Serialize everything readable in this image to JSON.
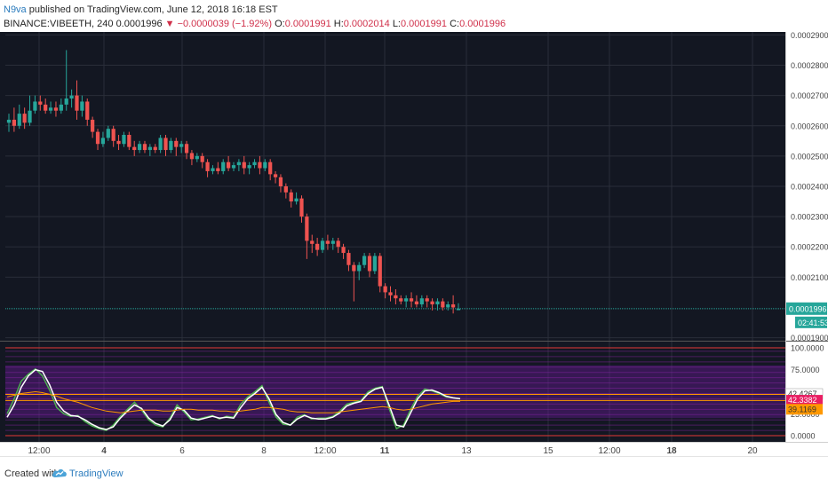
{
  "header": {
    "author": "N9va",
    "published": "published on TradingView.com, June 12, 2018 16:18 EST",
    "symbol": "BINANCE:VIBEETH, 240",
    "last": "0.0001996",
    "change": "▼ −0.0000039 (−1.92%)",
    "o_label": "O:",
    "o_value": "0.0001991",
    "h_label": "H:",
    "h_value": "0.0002014",
    "l_label": "L:",
    "l_value": "0.0001991",
    "c_label": "C:",
    "c_value": "0.0001996"
  },
  "footer": {
    "created_with": "Created with",
    "brand": "TradingView",
    "logo_icon": "tradingview-cloud-icon"
  },
  "colors": {
    "background": "#131722",
    "grid": "#2a2e39",
    "up": "#26a69a",
    "down": "#ef5350",
    "k_line": "#4caf50",
    "d_line": "#ffffff",
    "slow_line": "#ff9800",
    "band_fill": "#6a1b9a",
    "last_price": "#26a69a"
  },
  "chart_data": [
    {
      "type": "candlestick",
      "title": "BINANCE:VIBEETH, 240",
      "x_ticks": [
        "12:00",
        "4",
        "6",
        "8",
        "12:00",
        "11",
        "13",
        "15",
        "12:00",
        "18",
        "20"
      ],
      "y_ticks": [
        "0.0002900",
        "0.0002800",
        "0.0002700",
        "0.0002600",
        "0.0002500",
        "0.0002400",
        "0.0002300",
        "0.0002200",
        "0.0002100",
        "0.0001996",
        "0.0001900"
      ],
      "ylim": [
        0.000189,
        0.000291
      ],
      "last_price": 0.0001996,
      "last_price_label": "0.0001996",
      "countdown": "02:41:53",
      "grid": true,
      "candles": [
        [
          0.000261,
          0.000262,
          0.000258,
          0.000264
        ],
        [
          0.000262,
          0.00026,
          0.000258,
          0.000266
        ],
        [
          0.00026,
          0.000264,
          0.000259,
          0.000267
        ],
        [
          0.000264,
          0.000261,
          0.000259,
          0.000266
        ],
        [
          0.000261,
          0.000265,
          0.00026,
          0.00027
        ],
        [
          0.000265,
          0.000268,
          0.000264,
          0.00027
        ],
        [
          0.000268,
          0.000267,
          0.000265,
          0.00027
        ],
        [
          0.000267,
          0.000265,
          0.000264,
          0.000269
        ],
        [
          0.000265,
          0.000266,
          0.000264,
          0.000268
        ],
        [
          0.000266,
          0.000265,
          0.000263,
          0.000268
        ],
        [
          0.000265,
          0.000267,
          0.000264,
          0.000269
        ],
        [
          0.000267,
          0.000269,
          0.000265,
          0.000285
        ],
        [
          0.000269,
          0.00027,
          0.000266,
          0.000272
        ],
        [
          0.00027,
          0.000265,
          0.000262,
          0.000275
        ],
        [
          0.000265,
          0.000268,
          0.000263,
          0.00027
        ],
        [
          0.000268,
          0.000262,
          0.00026,
          0.000269
        ],
        [
          0.000262,
          0.000258,
          0.000256,
          0.000263
        ],
        [
          0.000258,
          0.000254,
          0.000252,
          0.000259
        ],
        [
          0.000254,
          0.000256,
          0.000253,
          0.000258
        ],
        [
          0.000256,
          0.000259,
          0.000255,
          0.00026
        ],
        [
          0.000259,
          0.000255,
          0.000253,
          0.00026
        ],
        [
          0.000255,
          0.000254,
          0.000252,
          0.000257
        ],
        [
          0.000254,
          0.000257,
          0.000253,
          0.000258
        ],
        [
          0.000257,
          0.000253,
          0.000252,
          0.000258
        ],
        [
          0.000253,
          0.000252,
          0.00025,
          0.000255
        ],
        [
          0.000252,
          0.000254,
          0.000251,
          0.000255
        ],
        [
          0.000254,
          0.000252,
          0.000251,
          0.000255
        ],
        [
          0.000252,
          0.000253,
          0.00025,
          0.000254
        ],
        [
          0.000253,
          0.000252,
          0.000251,
          0.000254
        ],
        [
          0.000252,
          0.000256,
          0.000251,
          0.000257
        ],
        [
          0.000256,
          0.000252,
          0.00025,
          0.000257
        ],
        [
          0.000252,
          0.000255,
          0.000251,
          0.000256
        ],
        [
          0.000255,
          0.000253,
          0.00025,
          0.000256
        ],
        [
          0.000253,
          0.000254,
          0.000251,
          0.000255
        ],
        [
          0.000254,
          0.000251,
          0.000249,
          0.000255
        ],
        [
          0.000251,
          0.000249,
          0.000247,
          0.000252
        ],
        [
          0.000249,
          0.00025,
          0.000248,
          0.000251
        ],
        [
          0.00025,
          0.000248,
          0.000246,
          0.000251
        ],
        [
          0.000248,
          0.000245,
          0.000243,
          0.000249
        ],
        [
          0.000245,
          0.000246,
          0.000244,
          0.000247
        ],
        [
          0.000246,
          0.000245,
          0.000244,
          0.000248
        ],
        [
          0.000245,
          0.000248,
          0.000244,
          0.000249
        ],
        [
          0.000248,
          0.000246,
          0.000245,
          0.00025
        ],
        [
          0.000246,
          0.000247,
          0.000245,
          0.000248
        ],
        [
          0.000247,
          0.000248,
          0.000245,
          0.000249
        ],
        [
          0.000248,
          0.000246,
          0.000244,
          0.00025
        ],
        [
          0.000246,
          0.000247,
          0.000244,
          0.000248
        ],
        [
          0.000247,
          0.000248,
          0.000246,
          0.000249
        ],
        [
          0.000248,
          0.000246,
          0.000244,
          0.00025
        ],
        [
          0.000246,
          0.000248,
          0.000245,
          0.000249
        ],
        [
          0.000248,
          0.000244,
          0.000242,
          0.000249
        ],
        [
          0.000244,
          0.000243,
          0.000241,
          0.000245
        ],
        [
          0.000243,
          0.00024,
          0.000238,
          0.000244
        ],
        [
          0.00024,
          0.000238,
          0.000236,
          0.000241
        ],
        [
          0.000238,
          0.000235,
          0.000233,
          0.000239
        ],
        [
          0.000235,
          0.000236,
          0.000234,
          0.000238
        ],
        [
          0.000236,
          0.00023,
          0.000228,
          0.000237
        ],
        [
          0.00023,
          0.000222,
          0.000216,
          0.000231
        ],
        [
          0.000222,
          0.000221,
          0.000218,
          0.000224
        ],
        [
          0.000221,
          0.000219,
          0.000217,
          0.000223
        ],
        [
          0.000219,
          0.000222,
          0.000218,
          0.000223
        ],
        [
          0.000222,
          0.000221,
          0.000219,
          0.000224
        ],
        [
          0.000221,
          0.000222,
          0.000219,
          0.000223
        ],
        [
          0.000222,
          0.00022,
          0.000218,
          0.000223
        ],
        [
          0.00022,
          0.000218,
          0.000216,
          0.000221
        ],
        [
          0.000218,
          0.000214,
          0.000212,
          0.000219
        ],
        [
          0.000214,
          0.000212,
          0.000202,
          0.000215
        ],
        [
          0.000212,
          0.000214,
          0.000209,
          0.000215
        ],
        [
          0.000214,
          0.000217,
          0.000213,
          0.000218
        ],
        [
          0.000217,
          0.000212,
          0.00021,
          0.000218
        ],
        [
          0.000212,
          0.000217,
          0.000211,
          0.000218
        ],
        [
          0.000217,
          0.000207,
          0.000205,
          0.000218
        ],
        [
          0.000207,
          0.000205,
          0.000203,
          0.000208
        ],
        [
          0.000205,
          0.000204,
          0.000202,
          0.000207
        ],
        [
          0.000204,
          0.000203,
          0.000201,
          0.000206
        ],
        [
          0.000203,
          0.000202,
          0.000201,
          0.000204
        ],
        [
          0.000202,
          0.000203,
          0.0002,
          0.000204
        ],
        [
          0.000203,
          0.000202,
          0.0002,
          0.000205
        ],
        [
          0.000202,
          0.000201,
          0.0002,
          0.000204
        ],
        [
          0.000201,
          0.000203,
          0.0002,
          0.000204
        ],
        [
          0.000203,
          0.000202,
          0.0002,
          0.000204
        ],
        [
          0.000202,
          0.000201,
          0.000199,
          0.000203
        ],
        [
          0.000201,
          0.000202,
          0.000199,
          0.000203
        ],
        [
          0.000202,
          0.0002,
          0.000199,
          0.000203
        ],
        [
          0.0002,
          0.000201,
          0.000199,
          0.000202
        ],
        [
          0.000201,
          0.0002,
          0.000198,
          0.000204
        ],
        [
          0.0001991,
          0.0001996,
          0.0001991,
          0.0002014
        ]
      ]
    },
    {
      "type": "line",
      "y_ticks": [
        "100.0000",
        "75.0000",
        "25.0000",
        "0.0000"
      ],
      "ylim": [
        -4,
        104
      ],
      "bands": [
        [
          20,
          80
        ]
      ],
      "levels": [
        42.43,
        42.34,
        39.12
      ],
      "value_labels": [
        "42.4267",
        "42.3382",
        "39.1169"
      ],
      "series": [
        {
          "color": "#4caf50",
          "values": [
            25,
            42,
            62,
            70,
            76,
            68,
            52,
            32,
            25,
            22,
            23,
            16,
            11,
            8,
            6,
            12,
            22,
            30,
            38,
            29,
            18,
            12,
            10,
            20,
            35,
            27,
            18,
            19,
            21,
            23,
            19,
            22,
            21,
            36,
            44,
            50,
            57,
            38,
            21,
            13,
            12,
            21,
            24,
            19,
            20,
            20,
            22,
            28,
            36,
            38,
            40,
            50,
            54,
            56,
            30,
            8,
            12,
            30,
            45,
            53,
            51,
            48,
            44,
            43,
            42
          ]
        },
        {
          "color": "#ffffff",
          "values": [
            21,
            35,
            55,
            68,
            75,
            73,
            58,
            38,
            28,
            23,
            22,
            18,
            13,
            9,
            7,
            10,
            20,
            28,
            35,
            31,
            20,
            14,
            11,
            18,
            32,
            29,
            20,
            18,
            20,
            22,
            20,
            21,
            20,
            32,
            42,
            48,
            55,
            42,
            24,
            15,
            12,
            19,
            23,
            20,
            19,
            19,
            21,
            26,
            34,
            37,
            39,
            48,
            53,
            55,
            34,
            12,
            10,
            26,
            42,
            51,
            52,
            49,
            45,
            43,
            42
          ]
        },
        {
          "color": "#ff9800",
          "values": [
            44,
            46,
            48,
            49,
            50,
            49,
            47,
            45,
            42,
            40,
            38,
            35,
            32,
            30,
            28,
            27,
            26,
            27,
            28,
            29,
            29,
            29,
            28,
            28,
            29,
            30,
            30,
            29,
            29,
            29,
            28,
            28,
            27,
            28,
            29,
            30,
            32,
            32,
            31,
            30,
            28,
            27,
            27,
            26,
            26,
            26,
            26,
            27,
            28,
            29,
            30,
            31,
            32,
            33,
            32,
            30,
            29,
            30,
            32,
            34,
            36,
            37,
            38,
            39,
            39
          ]
        }
      ]
    }
  ]
}
